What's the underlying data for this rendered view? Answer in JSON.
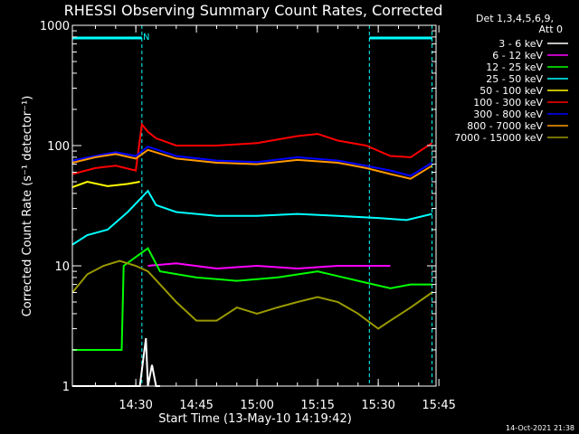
{
  "chart_data": {
    "type": "line",
    "title": "RHESSI Observing Summary Count Rates, Corrected",
    "xlabel": "Start Time (13-May-10 14:19:42)",
    "ylabel": "Corrected Count Rate (s⁻¹ detector⁻¹)",
    "y_scale": "log",
    "ylim": [
      1,
      1000
    ],
    "xlim_minutes": [
      14.3,
      104.3
    ],
    "x_ticks": [
      {
        "label": "14:30",
        "minute": 30
      },
      {
        "label": "14:45",
        "minute": 45
      },
      {
        "label": "15:00",
        "minute": 60
      },
      {
        "label": "15:15",
        "minute": 75
      },
      {
        "label": "15:30",
        "minute": 90
      },
      {
        "label": "15:45",
        "minute": 105
      }
    ],
    "y_ticks": [
      {
        "label": "1",
        "value": 1
      },
      {
        "label": "10",
        "value": 10
      },
      {
        "label": "100",
        "value": 100
      },
      {
        "label": "1000",
        "value": 1000
      }
    ],
    "legend": {
      "header": [
        "Det 1,3,4,5,6,9,",
        "Att 0"
      ],
      "placement": "right"
    },
    "annotations": {
      "n_marker": "N",
      "footer_date": "14-Oct-2021 21:38"
    },
    "night_intervals": [
      {
        "start_minute": 14.3,
        "end_minute": 31.5
      },
      {
        "start_minute": 87.8,
        "end_minute": 103.3
      }
    ],
    "series": [
      {
        "name": "3 - 6 keV",
        "color": "#ffffff",
        "x": [
          14.3,
          26.0,
          31.0,
          32.5,
          33.0,
          34.0,
          35.0,
          36.0
        ],
        "y": [
          1.0,
          1.0,
          1.0,
          2.5,
          1.0,
          1.5,
          1.0,
          1.0
        ]
      },
      {
        "name": "6 - 12 keV",
        "color": "#ff00ff",
        "x": [
          33.0,
          40.0,
          50.0,
          60.0,
          70.0,
          80.0,
          87.0,
          90.0,
          93.0
        ],
        "y": [
          10.0,
          10.5,
          9.5,
          10.0,
          9.5,
          10.0,
          10.0,
          10.0,
          10.0
        ]
      },
      {
        "name": "12 - 25 keV",
        "color": "#00ff00",
        "x": [
          14.3,
          26.5,
          27.0,
          33.0,
          36.0,
          45.0,
          55.0,
          65.0,
          75.0,
          85.0,
          93.0,
          98.0,
          103.3
        ],
        "y": [
          2.0,
          2.0,
          10.0,
          14.0,
          9.0,
          8.0,
          7.5,
          8.0,
          9.0,
          7.5,
          6.5,
          7.0,
          7.0
        ]
      },
      {
        "name": "25 - 50 keV",
        "color": "#00ffff",
        "x": [
          14.3,
          18.0,
          23.0,
          28.0,
          33.0,
          35.0,
          40.0,
          50.0,
          60.0,
          70.0,
          80.0,
          90.0,
          97.0,
          103.3
        ],
        "y": [
          15.0,
          18.0,
          20.0,
          28.0,
          42.0,
          32.0,
          28.0,
          26.0,
          26.0,
          27.0,
          26.0,
          25.0,
          24.0,
          27.0
        ]
      },
      {
        "name": "50 - 100 keV",
        "color": "#ffff00",
        "x": [
          14.3,
          18.0,
          23.0,
          28.0,
          31.0
        ],
        "y": [
          45.0,
          50.0,
          46.0,
          48.0,
          50.0
        ]
      },
      {
        "name": "100 - 300 keV",
        "color": "#ff0000",
        "x": [
          14.3,
          20.0,
          25.0,
          30.0,
          31.5,
          33.0,
          35.0,
          40.0,
          50.0,
          60.0,
          70.0,
          75.0,
          80.0,
          87.0,
          93.0,
          98.0,
          103.3
        ],
        "y": [
          58.0,
          65.0,
          68.0,
          62.0,
          150.0,
          130.0,
          115.0,
          100.0,
          100.0,
          105.0,
          120.0,
          125.0,
          110.0,
          100.0,
          82.0,
          80.0,
          105.0
        ]
      },
      {
        "name": "300 - 800 keV",
        "color": "#0000ff",
        "x": [
          14.3,
          20.0,
          25.0,
          30.0,
          33.0,
          40.0,
          50.0,
          60.0,
          70.0,
          80.0,
          87.0,
          93.0,
          98.0,
          103.3
        ],
        "y": [
          75.0,
          82.0,
          88.0,
          82.0,
          98.0,
          82.0,
          75.0,
          73.0,
          80.0,
          75.0,
          68.0,
          62.0,
          56.0,
          72.0
        ]
      },
      {
        "name": "800 - 7000 keV",
        "color": "#ff9900",
        "x": [
          14.3,
          20.0,
          25.0,
          30.0,
          33.0,
          40.0,
          50.0,
          60.0,
          70.0,
          80.0,
          87.0,
          93.0,
          98.0,
          103.3
        ],
        "y": [
          72.0,
          80.0,
          85.0,
          78.0,
          92.0,
          78.0,
          72.0,
          70.0,
          76.0,
          72.0,
          65.0,
          58.0,
          53.0,
          68.0
        ]
      },
      {
        "name": "7000 - 15000 keV",
        "color": "#999900",
        "x": [
          14.3,
          18.0,
          22.0,
          26.0,
          30.0,
          33.0,
          36.0,
          40.0,
          45.0,
          50.0,
          55.0,
          60.0,
          65.0,
          70.0,
          75.0,
          80.0,
          85.0,
          90.0,
          93.0,
          98.0,
          103.3
        ],
        "y": [
          6.0,
          8.5,
          10.0,
          11.0,
          10.0,
          9.0,
          7.0,
          5.0,
          3.5,
          3.5,
          4.5,
          4.0,
          4.5,
          5.0,
          5.5,
          5.0,
          4.0,
          3.0,
          3.5,
          4.5,
          6.0
        ]
      }
    ]
  }
}
